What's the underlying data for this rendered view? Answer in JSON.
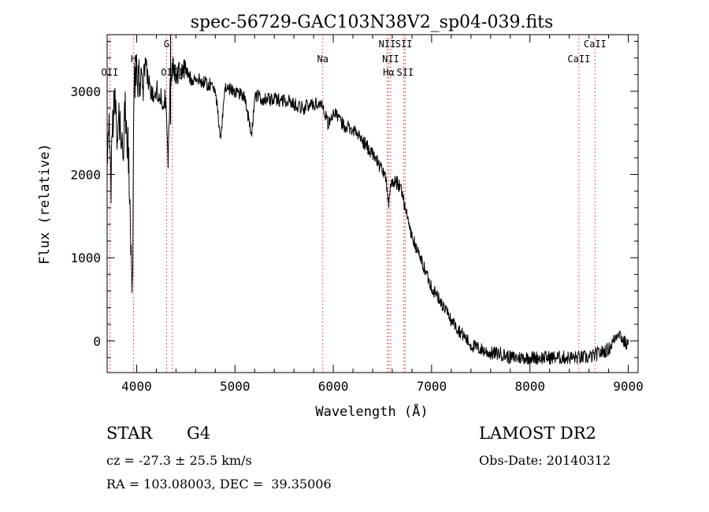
{
  "chart_data": {
    "type": "line",
    "title": "spec-56729-GAC103N38V2_sp04-039.fits",
    "xlabel": "Wavelength (Å)",
    "ylabel": "Flux (relative)",
    "xlim": [
      3700,
      9100
    ],
    "ylim": [
      -380,
      3680
    ],
    "x_ticks": [
      4000,
      5000,
      6000,
      7000,
      8000,
      9000
    ],
    "y_ticks": [
      0,
      1000,
      2000,
      3000
    ],
    "grid": false,
    "series": [
      {
        "x": [
          3700,
          3720,
          3740,
          3760,
          3780,
          3800,
          3820,
          3840,
          3860,
          3880,
          3900,
          3920,
          3940,
          3960,
          3970,
          3980,
          4000,
          4030,
          4060,
          4100,
          4150,
          4200,
          4250,
          4300,
          4320,
          4340,
          4360,
          4400,
          4450,
          4500,
          4550,
          4600,
          4700,
          4800,
          4850,
          4900,
          5000,
          5100,
          5170,
          5200,
          5300,
          5400,
          5500,
          5600,
          5700,
          5800,
          5890,
          5950,
          6000,
          6100,
          6200,
          6300,
          6400,
          6500,
          6540,
          6563,
          6580,
          6650,
          6700,
          6750,
          6800,
          6900,
          7000,
          7100,
          7200,
          7300,
          7400,
          7500,
          7600,
          7700,
          7800,
          7900,
          8000,
          8100,
          8200,
          8300,
          8400,
          8500,
          8600,
          8700,
          8800,
          8850,
          8900,
          8950,
          9000
        ],
        "y": [
          2350,
          2600,
          1900,
          2700,
          2900,
          2300,
          2700,
          2500,
          2200,
          2850,
          2500,
          2200,
          1000,
          700,
          2700,
          3100,
          3200,
          3150,
          3000,
          3250,
          2950,
          3050,
          2900,
          2900,
          2200,
          3050,
          3300,
          3200,
          3250,
          3250,
          3150,
          3150,
          3100,
          3050,
          2400,
          3050,
          3000,
          2950,
          2450,
          2950,
          2900,
          2900,
          2900,
          2850,
          2800,
          2850,
          2850,
          2600,
          2750,
          2600,
          2550,
          2400,
          2250,
          2050,
          1900,
          1650,
          1900,
          1900,
          1800,
          1500,
          1250,
          950,
          650,
          450,
          250,
          100,
          -50,
          -100,
          -150,
          -150,
          -200,
          -200,
          -200,
          -200,
          -200,
          -200,
          -200,
          -200,
          -200,
          -150,
          -100,
          0,
          120,
          0,
          -60
        ]
      }
    ],
    "lines": [
      {
        "label": "OII",
        "x": 3727,
        "label_row": 3
      },
      {
        "label": "H",
        "x": 3969,
        "label_row": 2
      },
      {
        "label": "G",
        "x": 4304,
        "label_row": 1
      },
      {
        "label": "OIII",
        "x": 4363,
        "label_row": 3
      },
      {
        "label": "Na",
        "x": 5893,
        "label_row": 2
      },
      {
        "label": "NII",
        "x": 6548,
        "label_row": 1
      },
      {
        "label": "NII",
        "x": 6584,
        "label_row": 2
      },
      {
        "label": "Hα",
        "x": 6563,
        "label_row": 3
      },
      {
        "label": "SII",
        "x": 6717,
        "label_row": 1
      },
      {
        "label": "SII",
        "x": 6731,
        "label_row": 3
      },
      {
        "label": "CaII",
        "x": 8498,
        "label_row": 2
      },
      {
        "label": "CaII",
        "x": 8662,
        "label_row": 1
      }
    ]
  },
  "footer": {
    "object_class": "STAR",
    "subclass": "G4",
    "survey": "LAMOST DR2",
    "redshift": "cz = -27.3 ± 25.5 km/s",
    "obs_date": "Obs-Date: 20140312",
    "coords": "RA = 103.08003, DEC =  39.35006"
  }
}
